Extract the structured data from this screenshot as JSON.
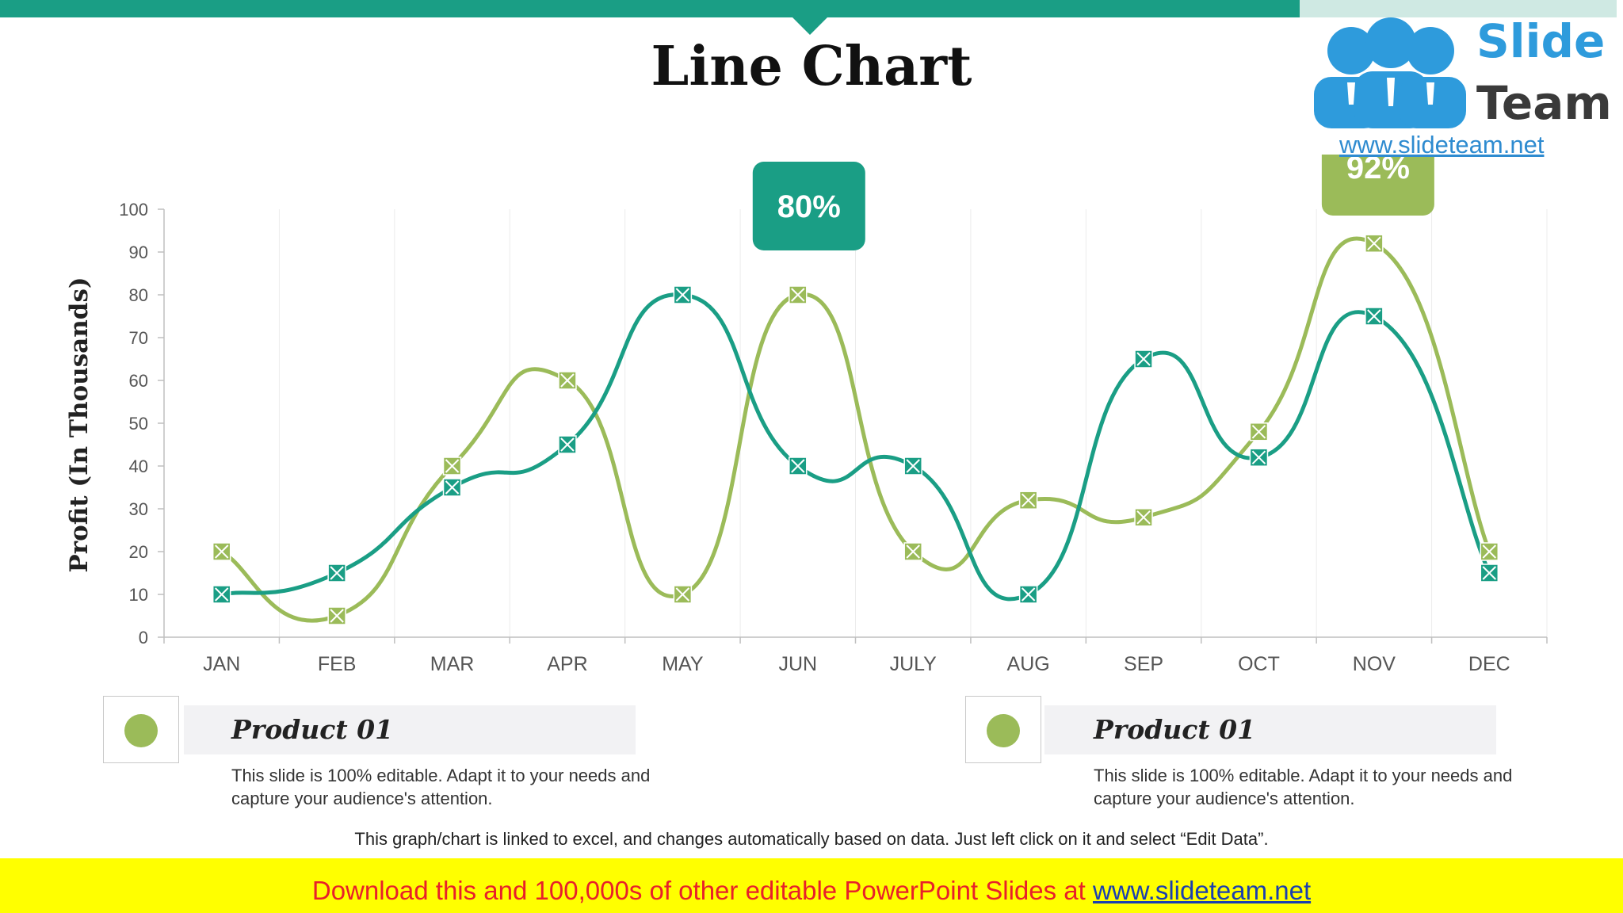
{
  "slide": {
    "title": "Line Chart",
    "logo": {
      "word1": "Slide",
      "word2": "Team",
      "url": "www.slideteam.net"
    },
    "note": "This graph/chart is linked to excel, and changes automatically based on data. Just left click on it and select “Edit Data”.",
    "banner": {
      "text": "Download this and 100,000s of other editable PowerPoint Slides at ",
      "link": "www.slideteam.net"
    },
    "legend": [
      {
        "name": "Product 01",
        "description": "This slide is 100% editable. Adapt it to your needs and capture your audience's attention.",
        "color": "#9bbb59"
      },
      {
        "name": "Product 01",
        "description": "This slide is 100% editable. Adapt it to your needs and capture your audience's attention.",
        "color": "#9bbb59"
      }
    ]
  },
  "colors": {
    "teal": "#1a9e85",
    "green": "#9bbb59",
    "axis": "#bfbfbf",
    "grid": "#ececec",
    "tick_text": "#555555"
  },
  "chart_data": {
    "type": "line",
    "title": "",
    "xlabel": "",
    "ylabel": "Profit (In Thousands)",
    "ylim": [
      0,
      100
    ],
    "yticks": [
      0,
      10,
      20,
      30,
      40,
      50,
      60,
      70,
      80,
      90,
      100
    ],
    "categories": [
      "JAN",
      "FEB",
      "MAR",
      "APR",
      "MAY",
      "JUN",
      "JULY",
      "AUG",
      "SEP",
      "OCT",
      "NOV",
      "DEC"
    ],
    "series": [
      {
        "color": "#1a9e85",
        "values": [
          10,
          15,
          35,
          45,
          80,
          40,
          40,
          10,
          65,
          42,
          75,
          15
        ]
      },
      {
        "color": "#9bbb59",
        "values": [
          20,
          5,
          40,
          60,
          10,
          80,
          20,
          32,
          28,
          48,
          92,
          20
        ]
      }
    ],
    "annotations": [
      {
        "text": "80%",
        "category": "JUN",
        "value": 80,
        "color": "#1a9e85"
      },
      {
        "text": "92%",
        "category": "NOV",
        "value": 92,
        "color": "#9bbb59"
      }
    ],
    "grid": true,
    "legend": "bottom"
  }
}
